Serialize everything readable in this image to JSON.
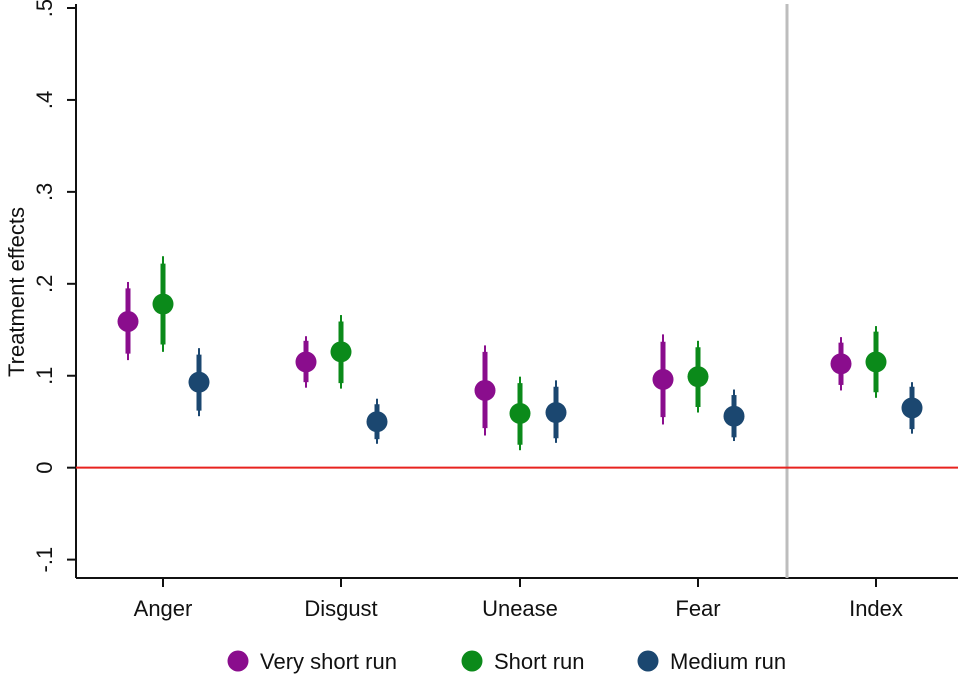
{
  "chart_data": {
    "type": "scatter",
    "ylabel": "Treatment effects",
    "xlabel": "",
    "ylim": [
      -0.12,
      0.5
    ],
    "yticks": [
      -0.1,
      0,
      0.1,
      0.2,
      0.3,
      0.4,
      0.5
    ],
    "ytick_labels": [
      "-.1",
      "0",
      ".1",
      ".2",
      ".3",
      ".4",
      ".5"
    ],
    "categories": [
      "Anger",
      "Disgust",
      "Unease",
      "Fear",
      "Index"
    ],
    "separator_after_category": "Fear",
    "reference_line": {
      "y": 0,
      "color": "#e8231f"
    },
    "grid": false,
    "legend_position": "bottom",
    "series": [
      {
        "name": "Very short run",
        "color": "#8a0d8d",
        "points": [
          {
            "category": "Anger",
            "y": 0.159,
            "ci90": [
              0.124,
              0.195
            ],
            "ci95": [
              0.117,
              0.202
            ]
          },
          {
            "category": "Disgust",
            "y": 0.115,
            "ci90": [
              0.093,
              0.138
            ],
            "ci95": [
              0.087,
              0.143
            ]
          },
          {
            "category": "Unease",
            "y": 0.084,
            "ci90": [
              0.043,
              0.126
            ],
            "ci95": [
              0.035,
              0.133
            ]
          },
          {
            "category": "Fear",
            "y": 0.096,
            "ci90": [
              0.055,
              0.137
            ],
            "ci95": [
              0.047,
              0.145
            ]
          },
          {
            "category": "Index",
            "y": 0.113,
            "ci90": [
              0.09,
              0.136
            ],
            "ci95": [
              0.084,
              0.142
            ]
          }
        ]
      },
      {
        "name": "Short run",
        "color": "#0b8a1a",
        "points": [
          {
            "category": "Anger",
            "y": 0.178,
            "ci90": [
              0.134,
              0.222
            ],
            "ci95": [
              0.126,
              0.23
            ]
          },
          {
            "category": "Disgust",
            "y": 0.126,
            "ci90": [
              0.092,
              0.159
            ],
            "ci95": [
              0.086,
              0.166
            ]
          },
          {
            "category": "Unease",
            "y": 0.059,
            "ci90": [
              0.025,
              0.092
            ],
            "ci95": [
              0.019,
              0.099
            ]
          },
          {
            "category": "Fear",
            "y": 0.099,
            "ci90": [
              0.066,
              0.131
            ],
            "ci95": [
              0.06,
              0.138
            ]
          },
          {
            "category": "Index",
            "y": 0.115,
            "ci90": [
              0.082,
              0.148
            ],
            "ci95": [
              0.076,
              0.154
            ]
          }
        ]
      },
      {
        "name": "Medium run",
        "color": "#1b4770",
        "points": [
          {
            "category": "Anger",
            "y": 0.093,
            "ci90": [
              0.062,
              0.123
            ],
            "ci95": [
              0.056,
              0.13
            ]
          },
          {
            "category": "Disgust",
            "y": 0.05,
            "ci90": [
              0.031,
              0.069
            ],
            "ci95": [
              0.026,
              0.075
            ]
          },
          {
            "category": "Unease",
            "y": 0.06,
            "ci90": [
              0.032,
              0.088
            ],
            "ci95": [
              0.027,
              0.095
            ]
          },
          {
            "category": "Fear",
            "y": 0.056,
            "ci90": [
              0.033,
              0.079
            ],
            "ci95": [
              0.029,
              0.085
            ]
          },
          {
            "category": "Index",
            "y": 0.065,
            "ci90": [
              0.042,
              0.088
            ],
            "ci95": [
              0.037,
              0.093
            ]
          }
        ]
      }
    ]
  }
}
